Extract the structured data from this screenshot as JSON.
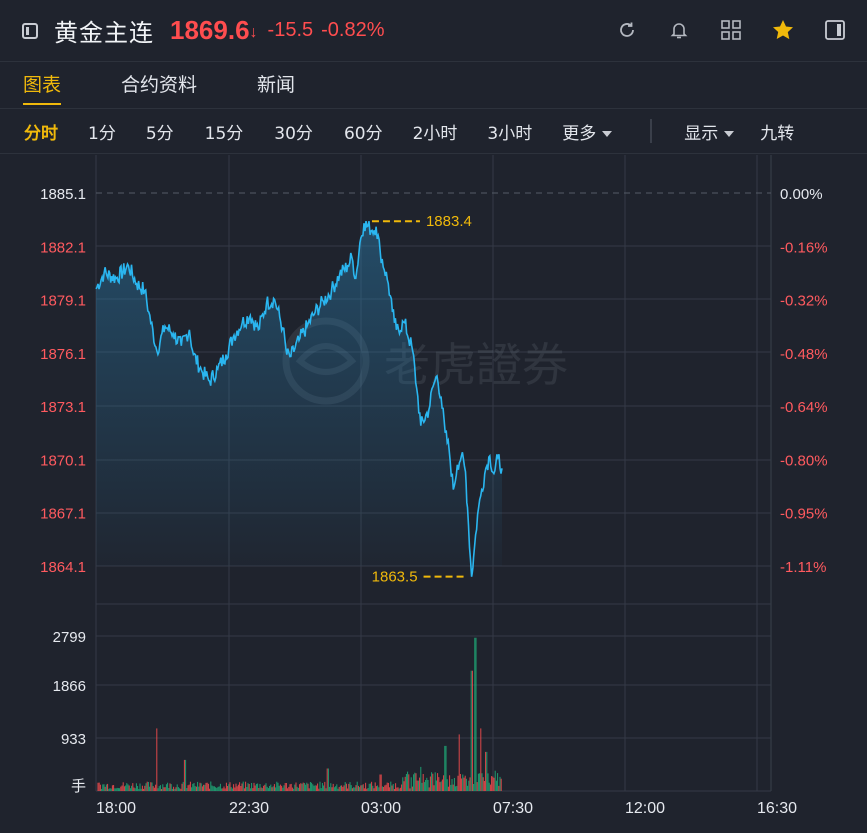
{
  "header": {
    "title": "黄金主连",
    "price": "1869.6",
    "price_arrow": "↓",
    "change": "-15.5",
    "change_pct": "-0.82%",
    "icons": [
      "refresh-icon",
      "bell-icon",
      "grid-icon",
      "star-icon",
      "panel-icon"
    ]
  },
  "tabs": [
    {
      "label": "图表",
      "active": true
    },
    {
      "label": "合约资料",
      "active": false
    },
    {
      "label": "新闻",
      "active": false
    }
  ],
  "periods": {
    "items": [
      "分时",
      "1分",
      "5分",
      "15分",
      "30分",
      "60分",
      "2小时",
      "3小时"
    ],
    "active": "分时",
    "more": "更多",
    "display": "显示",
    "nine": "九转"
  },
  "chart": {
    "price_labels": [
      "1885.1",
      "1882.1",
      "1879.1",
      "1876.1",
      "1873.1",
      "1870.1",
      "1867.1",
      "1864.1"
    ],
    "pct_labels": [
      "0.00%",
      "-0.16%",
      "-0.32%",
      "-0.48%",
      "-0.64%",
      "-0.80%",
      "-0.95%",
      "-1.11%"
    ],
    "volume_labels": [
      "2799",
      "1866",
      "933",
      "手"
    ],
    "time_labels": [
      "18:00",
      "22:30",
      "03:00",
      "07:30",
      "12:00",
      "16:30"
    ],
    "high_label": "1883.4",
    "low_label": "1863.5",
    "watermark": "老虎證券",
    "colors": {
      "line": "#2ab6f0",
      "up": "#ff4d4f",
      "down": "#1fb37c",
      "marker": "#f0b90b"
    }
  },
  "chart_data": {
    "type": "line",
    "x_range": [
      "18:00",
      "16:30"
    ],
    "ylim": [
      1864.1,
      1885.1
    ],
    "prev_close": 1885.1,
    "high": 1883.4,
    "low": 1863.5,
    "last": 1869.6,
    "anchors": [
      [
        0,
        1879.7
      ],
      [
        0.02,
        1880.6
      ],
      [
        0.05,
        1880.3
      ],
      [
        0.08,
        1881.0
      ],
      [
        0.1,
        1880.0
      ],
      [
        0.12,
        1879.6
      ],
      [
        0.13,
        1878.4
      ],
      [
        0.15,
        1876.2
      ],
      [
        0.17,
        1877.6
      ],
      [
        0.19,
        1877.2
      ],
      [
        0.21,
        1876.5
      ],
      [
        0.23,
        1877.4
      ],
      [
        0.24,
        1876.0
      ],
      [
        0.26,
        1875.1
      ],
      [
        0.28,
        1874.5
      ],
      [
        0.3,
        1875.2
      ],
      [
        0.32,
        1876.0
      ],
      [
        0.34,
        1877.1
      ],
      [
        0.36,
        1877.8
      ],
      [
        0.38,
        1878.2
      ],
      [
        0.4,
        1877.4
      ],
      [
        0.42,
        1878.9
      ],
      [
        0.44,
        1879.1
      ],
      [
        0.46,
        1877.5
      ],
      [
        0.47,
        1876.0
      ],
      [
        0.48,
        1875.9
      ],
      [
        0.5,
        1876.8
      ],
      [
        0.52,
        1877.6
      ],
      [
        0.54,
        1878.4
      ],
      [
        0.56,
        1879.0
      ],
      [
        0.58,
        1879.6
      ],
      [
        0.6,
        1880.5
      ],
      [
        0.62,
        1881.0
      ],
      [
        0.63,
        1881.5
      ],
      [
        0.64,
        1880.3
      ],
      [
        0.65,
        1882.3
      ],
      [
        0.66,
        1883.4
      ],
      [
        0.68,
        1883.0
      ],
      [
        0.69,
        1883.2
      ],
      [
        0.7,
        1881.8
      ],
      [
        0.72,
        1880.0
      ],
      [
        0.73,
        1878.4
      ],
      [
        0.74,
        1877.4
      ],
      [
        0.76,
        1877.8
      ],
      [
        0.78,
        1876.2
      ],
      [
        0.79,
        1874.1
      ],
      [
        0.8,
        1872.0
      ],
      [
        0.82,
        1872.9
      ],
      [
        0.83,
        1874.2
      ],
      [
        0.84,
        1874.8
      ],
      [
        0.85,
        1873.6
      ],
      [
        0.86,
        1871.6
      ],
      [
        0.87,
        1870.6
      ],
      [
        0.88,
        1868.4
      ],
      [
        0.89,
        1869.8
      ],
      [
        0.9,
        1870.3
      ],
      [
        0.91,
        1869.4
      ],
      [
        0.915,
        1867.4
      ],
      [
        0.925,
        1863.5
      ],
      [
        0.93,
        1864.6
      ],
      [
        0.94,
        1867.0
      ],
      [
        0.95,
        1868.4
      ],
      [
        0.96,
        1869.6
      ],
      [
        0.97,
        1870.3
      ],
      [
        0.98,
        1869.3
      ],
      [
        0.99,
        1870.2
      ],
      [
        1.0,
        1869.6
      ]
    ],
    "volume_ylim": [
      0,
      3732
    ]
  }
}
